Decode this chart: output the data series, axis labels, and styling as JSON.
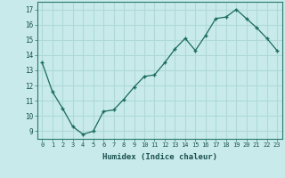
{
  "x": [
    0,
    1,
    2,
    3,
    4,
    5,
    6,
    7,
    8,
    9,
    10,
    11,
    12,
    13,
    14,
    15,
    16,
    17,
    18,
    19,
    20,
    21,
    22,
    23
  ],
  "y": [
    13.5,
    11.6,
    10.5,
    9.3,
    8.8,
    9.0,
    10.3,
    10.4,
    11.1,
    11.9,
    12.6,
    12.7,
    13.5,
    14.4,
    15.1,
    14.3,
    15.3,
    16.4,
    16.5,
    17.0,
    16.4,
    15.8,
    15.1,
    14.3
  ],
  "xlabel": "Humidex (Indice chaleur)",
  "bg_color": "#c8eaea",
  "grid_color": "#b0d8d8",
  "line_color": "#1a6b5a",
  "marker_color": "#1a6b5a",
  "ylim": [
    8.5,
    17.5
  ],
  "xlim": [
    -0.5,
    23.5
  ],
  "yticks": [
    9,
    10,
    11,
    12,
    13,
    14,
    15,
    16,
    17
  ],
  "xticks": [
    0,
    1,
    2,
    3,
    4,
    5,
    6,
    7,
    8,
    9,
    10,
    11,
    12,
    13,
    14,
    15,
    16,
    17,
    18,
    19,
    20,
    21,
    22,
    23
  ]
}
